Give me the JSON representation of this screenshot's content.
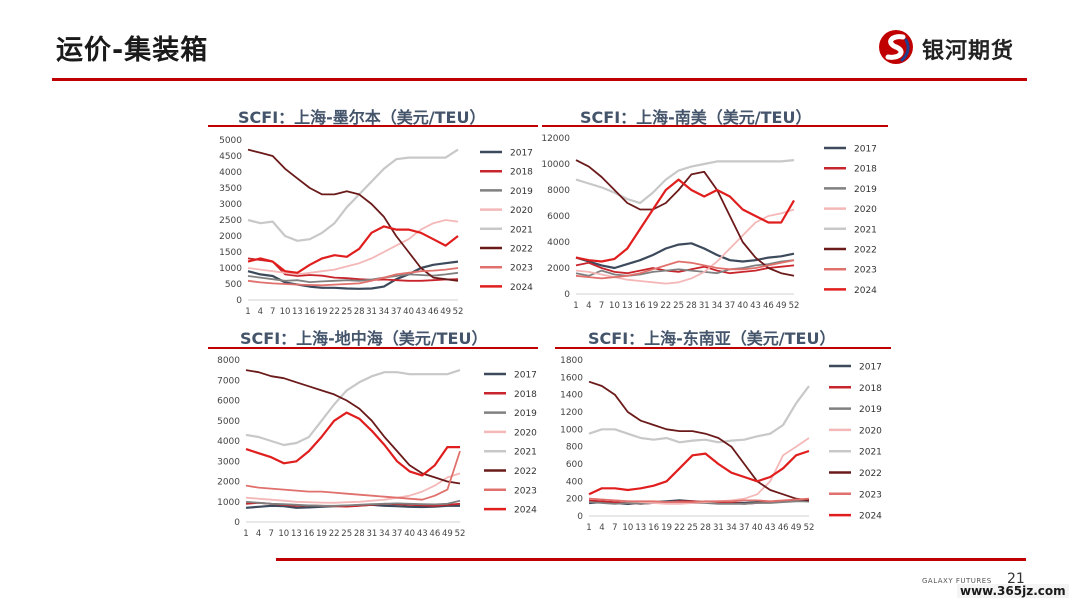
{
  "slide": {
    "title": "运价-集装箱",
    "brand": "银河期货",
    "footer_brand": "GALAXY FUTURES",
    "page_number": "21",
    "watermark": "www.365jz.com",
    "accent_color": "#c00000"
  },
  "chart_data": [
    {
      "type": "line",
      "title": "SCFI：上海-墨尔本（美元/TEU）",
      "ylim": [
        0,
        5000
      ],
      "yticks": [
        0,
        500,
        1000,
        1500,
        2000,
        2500,
        3000,
        3500,
        4000,
        4500,
        5000
      ],
      "x": [
        1,
        4,
        7,
        10,
        13,
        16,
        19,
        22,
        25,
        28,
        31,
        34,
        37,
        40,
        43,
        46,
        49,
        52
      ],
      "xtick_labels": [
        "1",
        "4",
        "7",
        "10",
        "13",
        "16",
        "19",
        "22",
        "25",
        "28",
        "31",
        "34",
        "37",
        "40",
        "43",
        "46",
        "49",
        "52"
      ],
      "series": [
        {
          "name": "2017",
          "color": "#3d4a5c",
          "width": 2.2,
          "values": [
            900,
            800,
            750,
            550,
            480,
            420,
            380,
            380,
            360,
            350,
            360,
            420,
            650,
            800,
            1000,
            1100,
            1150,
            1200
          ]
        },
        {
          "name": "2018",
          "color": "#c8242b",
          "width": 1.8,
          "values": [
            1300,
            1250,
            1200,
            800,
            750,
            780,
            760,
            700,
            680,
            650,
            630,
            640,
            620,
            600,
            600,
            620,
            640,
            650
          ]
        },
        {
          "name": "2019",
          "color": "#808080",
          "width": 1.8,
          "values": [
            750,
            700,
            650,
            600,
            620,
            560,
            580,
            600,
            620,
            600,
            640,
            700,
            750,
            800,
            780,
            760,
            800,
            850
          ]
        },
        {
          "name": "2020",
          "color": "#f4b8b8",
          "width": 1.8,
          "values": [
            1000,
            950,
            900,
            850,
            800,
            850,
            900,
            950,
            1050,
            1150,
            1300,
            1500,
            1700,
            1900,
            2200,
            2400,
            2500,
            2450
          ]
        },
        {
          "name": "2021",
          "color": "#c8c8c8",
          "width": 2.2,
          "values": [
            2500,
            2400,
            2450,
            2000,
            1850,
            1900,
            2100,
            2400,
            2900,
            3300,
            3700,
            4100,
            4400,
            4450,
            4450,
            4450,
            4450,
            4700
          ]
        },
        {
          "name": "2022",
          "color": "#6b1a1a",
          "width": 1.8,
          "values": [
            4700,
            4600,
            4500,
            4100,
            3800,
            3500,
            3300,
            3300,
            3400,
            3300,
            3000,
            2600,
            2000,
            1500,
            1000,
            700,
            650,
            600
          ]
        },
        {
          "name": "2023",
          "color": "#e0706c",
          "width": 1.8,
          "values": [
            600,
            550,
            520,
            500,
            480,
            470,
            460,
            480,
            500,
            520,
            600,
            700,
            800,
            850,
            900,
            920,
            950,
            1000
          ]
        },
        {
          "name": "2024",
          "color": "#e01e1e",
          "width": 2.2,
          "values": [
            1200,
            1300,
            1200,
            900,
            850,
            1100,
            1300,
            1400,
            1350,
            1600,
            2100,
            2300,
            2200,
            2200,
            2100,
            1900,
            1700,
            2000
          ]
        }
      ]
    },
    {
      "type": "line",
      "title": "SCFI：上海-南美（美元/TEU）",
      "ylim": [
        0,
        12000
      ],
      "yticks": [
        0,
        2000,
        4000,
        6000,
        8000,
        10000,
        12000
      ],
      "x": [
        1,
        4,
        7,
        10,
        13,
        16,
        19,
        22,
        25,
        28,
        31,
        34,
        37,
        40,
        43,
        46,
        49,
        52
      ],
      "xtick_labels": [
        "1",
        "4",
        "7",
        "10",
        "13",
        "16",
        "19",
        "22",
        "25",
        "28",
        "31",
        "34",
        "37",
        "40",
        "43",
        "46",
        "49",
        "52"
      ],
      "series": [
        {
          "name": "2017",
          "color": "#3d4a5c",
          "width": 2.2,
          "values": [
            2800,
            2500,
            2200,
            2000,
            2300,
            2600,
            3000,
            3500,
            3800,
            3900,
            3500,
            3000,
            2600,
            2500,
            2600,
            2800,
            2900,
            3100
          ]
        },
        {
          "name": "2018",
          "color": "#c8242b",
          "width": 1.8,
          "values": [
            2200,
            2400,
            2000,
            1700,
            1600,
            1800,
            2000,
            1800,
            1700,
            1900,
            2100,
            1800,
            1600,
            1700,
            1800,
            2000,
            2100,
            2200
          ]
        },
        {
          "name": "2019",
          "color": "#808080",
          "width": 1.8,
          "values": [
            1600,
            1400,
            1800,
            1500,
            1400,
            1500,
            1700,
            1800,
            1900,
            1800,
            1700,
            1600,
            1900,
            2000,
            2200,
            2300,
            2500,
            2600
          ]
        },
        {
          "name": "2020",
          "color": "#f4b8b8",
          "width": 1.8,
          "values": [
            1800,
            1700,
            1500,
            1300,
            1100,
            1000,
            900,
            800,
            900,
            1200,
            1700,
            2500,
            3500,
            4500,
            5500,
            6000,
            6200,
            6500
          ]
        },
        {
          "name": "2021",
          "color": "#c8c8c8",
          "width": 2.2,
          "values": [
            8800,
            8500,
            8200,
            7800,
            7300,
            7000,
            7800,
            8800,
            9500,
            9800,
            10000,
            10200,
            10200,
            10200,
            10200,
            10200,
            10200,
            10300
          ]
        },
        {
          "name": "2022",
          "color": "#6b1a1a",
          "width": 1.8,
          "values": [
            10300,
            9800,
            9000,
            8000,
            7000,
            6500,
            6500,
            7000,
            8000,
            9200,
            9400,
            8000,
            6000,
            4000,
            2800,
            2000,
            1600,
            1400
          ]
        },
        {
          "name": "2023",
          "color": "#e0706c",
          "width": 1.8,
          "values": [
            1400,
            1300,
            1200,
            1300,
            1400,
            1600,
            1900,
            2200,
            2500,
            2400,
            2200,
            2000,
            1900,
            1900,
            2000,
            2200,
            2400,
            2600
          ]
        },
        {
          "name": "2024",
          "color": "#e01e1e",
          "width": 2.2,
          "values": [
            2800,
            2600,
            2500,
            2700,
            3500,
            5000,
            6500,
            8000,
            8800,
            8000,
            7500,
            8000,
            7500,
            6500,
            6000,
            5500,
            5500,
            7200
          ]
        }
      ]
    },
    {
      "type": "line",
      "title": "SCFI：上海-地中海（美元/TEU）",
      "ylim": [
        0,
        8000
      ],
      "yticks": [
        0,
        1000,
        2000,
        3000,
        4000,
        5000,
        6000,
        7000,
        8000
      ],
      "x": [
        1,
        4,
        7,
        10,
        13,
        16,
        19,
        22,
        25,
        28,
        31,
        34,
        37,
        40,
        43,
        46,
        49,
        52
      ],
      "xtick_labels": [
        "1",
        "4",
        "7",
        "10",
        "13",
        "16",
        "19",
        "22",
        "25",
        "28",
        "31",
        "34",
        "37",
        "40",
        "43",
        "46",
        "49",
        "52"
      ],
      "series": [
        {
          "name": "2017",
          "color": "#3d4a5c",
          "width": 2.2,
          "values": [
            700,
            750,
            800,
            780,
            700,
            720,
            750,
            780,
            800,
            820,
            850,
            800,
            780,
            750,
            740,
            760,
            800,
            800
          ]
        },
        {
          "name": "2018",
          "color": "#c8242b",
          "width": 1.8,
          "values": [
            900,
            950,
            900,
            850,
            800,
            820,
            800,
            780,
            760,
            800,
            850,
            900,
            880,
            850,
            820,
            800,
            850,
            900
          ]
        },
        {
          "name": "2019",
          "color": "#808080",
          "width": 1.8,
          "values": [
            1000,
            950,
            900,
            880,
            850,
            820,
            800,
            800,
            820,
            850,
            880,
            900,
            920,
            900,
            880,
            870,
            900,
            1050
          ]
        },
        {
          "name": "2020",
          "color": "#f4b8b8",
          "width": 1.8,
          "values": [
            1200,
            1150,
            1100,
            1050,
            1000,
            980,
            960,
            950,
            980,
            1000,
            1050,
            1100,
            1200,
            1300,
            1500,
            1800,
            2200,
            2400
          ]
        },
        {
          "name": "2021",
          "color": "#c8c8c8",
          "width": 2.2,
          "values": [
            4300,
            4200,
            4000,
            3800,
            3900,
            4200,
            5000,
            5800,
            6500,
            6900,
            7200,
            7400,
            7400,
            7300,
            7300,
            7300,
            7300,
            7500
          ]
        },
        {
          "name": "2022",
          "color": "#6b1a1a",
          "width": 1.8,
          "values": [
            7500,
            7400,
            7200,
            7100,
            6900,
            6700,
            6500,
            6300,
            6000,
            5600,
            5000,
            4200,
            3500,
            2800,
            2400,
            2200,
            2000,
            1900
          ]
        },
        {
          "name": "2023",
          "color": "#e0706c",
          "width": 1.8,
          "values": [
            1800,
            1700,
            1650,
            1600,
            1550,
            1500,
            1500,
            1450,
            1400,
            1350,
            1300,
            1250,
            1200,
            1150,
            1100,
            1300,
            1600,
            3500
          ]
        },
        {
          "name": "2024",
          "color": "#e01e1e",
          "width": 2.2,
          "values": [
            3600,
            3400,
            3200,
            2900,
            3000,
            3500,
            4200,
            5000,
            5400,
            5100,
            4500,
            3800,
            3000,
            2500,
            2300,
            2800,
            3700,
            3700
          ]
        }
      ]
    },
    {
      "type": "line",
      "title": "SCFI：上海-东南亚（美元/TEU）",
      "ylim": [
        0,
        1800
      ],
      "yticks": [
        0,
        200,
        400,
        600,
        800,
        1000,
        1200,
        1400,
        1600,
        1800
      ],
      "x": [
        1,
        4,
        7,
        10,
        13,
        16,
        19,
        22,
        25,
        28,
        31,
        34,
        37,
        40,
        43,
        46,
        49,
        52
      ],
      "xtick_labels": [
        "1",
        "4",
        "7",
        "10",
        "13",
        "16",
        "19",
        "22",
        "25",
        "28",
        "31",
        "34",
        "37",
        "40",
        "43",
        "46",
        "49",
        "52"
      ],
      "series": [
        {
          "name": "2017",
          "color": "#3d4a5c",
          "width": 2.2,
          "values": [
            150,
            160,
            150,
            140,
            150,
            160,
            170,
            180,
            170,
            160,
            160,
            150,
            150,
            160,
            160,
            170,
            180,
            170
          ]
        },
        {
          "name": "2018",
          "color": "#c8242b",
          "width": 1.8,
          "values": [
            180,
            170,
            160,
            150,
            140,
            150,
            160,
            170,
            170,
            160,
            150,
            150,
            140,
            150,
            160,
            170,
            180,
            180
          ]
        },
        {
          "name": "2019",
          "color": "#808080",
          "width": 1.8,
          "values": [
            160,
            150,
            140,
            150,
            140,
            150,
            160,
            160,
            150,
            150,
            140,
            140,
            140,
            150,
            150,
            160,
            170,
            170
          ]
        },
        {
          "name": "2020",
          "color": "#f4b8b8",
          "width": 1.8,
          "values": [
            200,
            190,
            180,
            170,
            160,
            150,
            140,
            140,
            150,
            160,
            170,
            180,
            200,
            250,
            400,
            700,
            800,
            900
          ]
        },
        {
          "name": "2021",
          "color": "#c8c8c8",
          "width": 2.2,
          "values": [
            950,
            1000,
            1000,
            950,
            900,
            880,
            900,
            850,
            870,
            880,
            850,
            870,
            880,
            920,
            950,
            1050,
            1300,
            1500
          ]
        },
        {
          "name": "2022",
          "color": "#6b1a1a",
          "width": 1.8,
          "values": [
            1550,
            1500,
            1400,
            1200,
            1100,
            1050,
            1000,
            980,
            980,
            950,
            900,
            800,
            600,
            400,
            300,
            250,
            200,
            180
          ]
        },
        {
          "name": "2023",
          "color": "#e0706c",
          "width": 1.8,
          "values": [
            200,
            190,
            180,
            170,
            170,
            170,
            160,
            160,
            160,
            170,
            170,
            170,
            180,
            180,
            170,
            180,
            190,
            200
          ]
        },
        {
          "name": "2024",
          "color": "#e01e1e",
          "width": 2.2,
          "values": [
            250,
            320,
            320,
            300,
            320,
            350,
            400,
            550,
            700,
            720,
            600,
            500,
            450,
            400,
            450,
            550,
            700,
            750
          ]
        }
      ]
    }
  ]
}
